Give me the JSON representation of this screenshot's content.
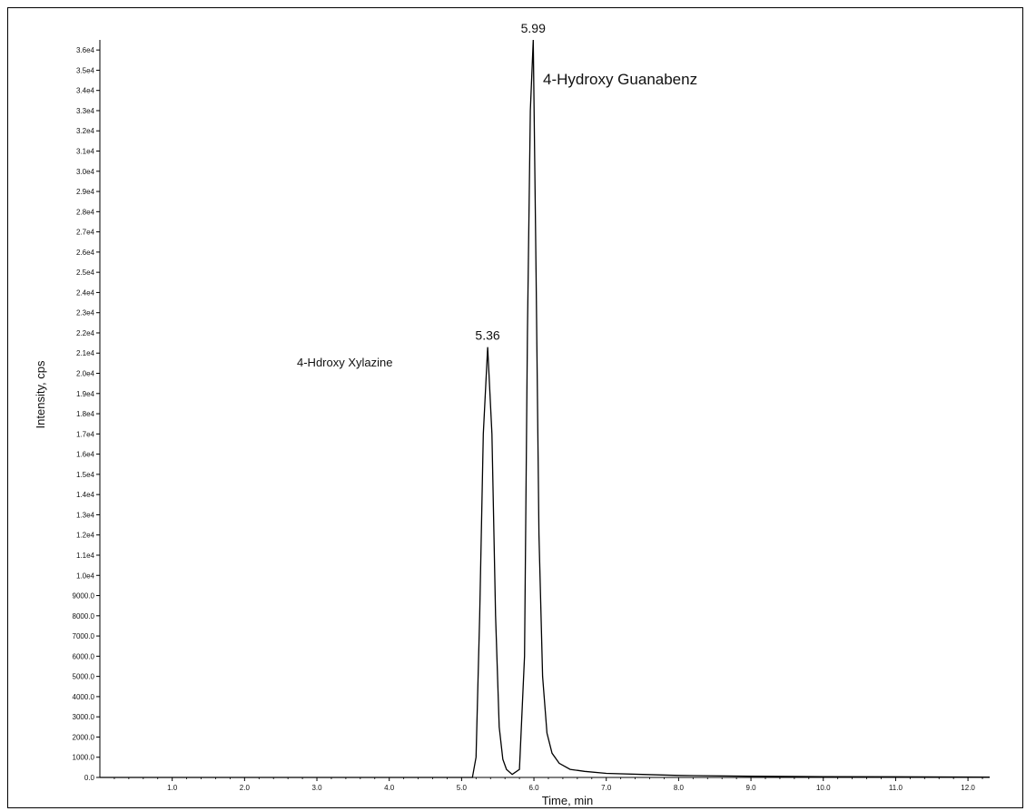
{
  "chart_data": {
    "type": "line",
    "xlabel": "Time, min",
    "ylabel": "Intensity, cps",
    "xlim": [
      0.0,
      12.3
    ],
    "ylim": [
      0.0,
      36500
    ],
    "x_ticks": [
      "1.0",
      "2.0",
      "3.0",
      "4.0",
      "5.0",
      "6.0",
      "7.0",
      "8.0",
      "9.0",
      "10.0",
      "11.0",
      "12.0"
    ],
    "y_ticks": [
      "0.0",
      "1000.0",
      "2000.0",
      "3000.0",
      "4000.0",
      "5000.0",
      "6000.0",
      "7000.0",
      "8000.0",
      "9000.0",
      "1.0e4",
      "1.1e4",
      "1.2e4",
      "1.3e4",
      "1.4e4",
      "1.5e4",
      "1.6e4",
      "1.7e4",
      "1.8e4",
      "1.9e4",
      "2.0e4",
      "2.1e4",
      "2.2e4",
      "2.3e4",
      "2.4e4",
      "2.5e4",
      "2.6e4",
      "2.7e4",
      "2.8e4",
      "2.9e4",
      "3.0e4",
      "3.1e4",
      "3.2e4",
      "3.3e4",
      "3.4e4",
      "3.5e4",
      "3.6e4"
    ],
    "series": [
      {
        "x": [
          0.0,
          5.0,
          5.15,
          5.2,
          5.25,
          5.3,
          5.36,
          5.42,
          5.47,
          5.52,
          5.57,
          5.62,
          5.7,
          5.8,
          5.87,
          5.91,
          5.95,
          5.99,
          6.03,
          6.07,
          6.12,
          6.18,
          6.25,
          6.35,
          6.5,
          6.7,
          7.0,
          7.5,
          8.0,
          9.0,
          10.0,
          11.0,
          12.3
        ],
        "y": [
          0,
          0,
          0,
          1000,
          8000,
          17000,
          21300,
          17000,
          8000,
          2500,
          900,
          400,
          150,
          400,
          6000,
          22000,
          33000,
          36500,
          25000,
          12000,
          5000,
          2200,
          1200,
          700,
          400,
          300,
          200,
          150,
          100,
          60,
          40,
          30,
          20
        ]
      }
    ],
    "peak_labels": [
      {
        "x": 5.36,
        "y": 21300,
        "text": "5.36"
      },
      {
        "x": 5.99,
        "y": 36500,
        "text": "5.99"
      }
    ],
    "annotations": [
      {
        "text": "4-Hdroxy Xylazine",
        "size": "small"
      },
      {
        "text": "4-Hydroxy Guanabenz",
        "size": "large"
      }
    ]
  }
}
